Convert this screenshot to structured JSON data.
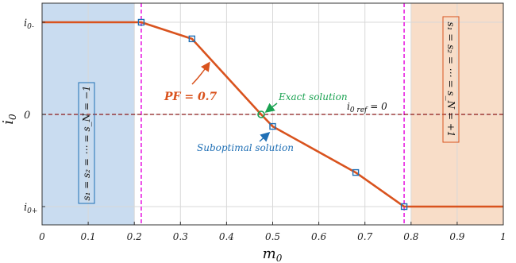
{
  "chart_data": {
    "type": "line",
    "title": "",
    "xlabel": "m",
    "xlabel_sub": "0",
    "ylabel": "i",
    "ylabel_sub": "0",
    "xlim": [
      0,
      1
    ],
    "ylim": [
      -1.2,
      1.0
    ],
    "grid": true,
    "x_ticks": [
      0,
      0.1,
      0.2,
      0.3,
      0.4,
      0.5,
      0.6,
      0.7,
      0.8,
      0.9,
      1
    ],
    "x_tick_labels": [
      "0",
      "0.1",
      "0.2",
      "0.3",
      "0.4",
      "0.5",
      "0.6",
      "0.7",
      "0.8",
      "0.9",
      "1"
    ],
    "y_ticks": [
      {
        "value": 1,
        "main": "i",
        "sub": "0-"
      },
      {
        "value": 0,
        "main": "0",
        "sub": ""
      },
      {
        "value": -1,
        "main": "i",
        "sub": "0+"
      }
    ],
    "series": [
      {
        "color": "#d9531e",
        "x": [
          0,
          0.215,
          0.325,
          0.475,
          0.5,
          0.68,
          0.785,
          1
        ],
        "y": [
          1,
          1,
          0.82,
          0,
          -0.13,
          -0.63,
          -1,
          -1
        ]
      }
    ],
    "markers_square": {
      "color": "#1f6fb5",
      "x": [
        0.215,
        0.325,
        0.5,
        0.68,
        0.785
      ],
      "y": [
        1,
        0.82,
        -0.13,
        -0.63,
        -1
      ]
    },
    "marker_exact": {
      "x": 0.475,
      "y": 0,
      "color": "#1aa251"
    },
    "vlines": [
      {
        "x": 0.215,
        "color": "#e81ee0"
      },
      {
        "x": 0.785,
        "color": "#e81ee0"
      }
    ],
    "hline": {
      "y": 0,
      "color": "#8b1a1a"
    },
    "regions": [
      {
        "x0": 0,
        "x1": 0.2,
        "color": "#c9dcf0",
        "label": "s₁ = s₂ = ⋯ = s_N = −1",
        "border": "#1f6fb5"
      },
      {
        "x0": 0.8,
        "x1": 1,
        "color": "#f8ddc8",
        "label": "s₁ = s₂ = ⋯ = s_N = +1",
        "border": "#d9531e"
      }
    ],
    "annotations": {
      "pf": "PF = 0.7",
      "exact": "Exact solution",
      "suboptimal": "Suboptimal solution",
      "i0ref_main": "i",
      "i0ref_sub": "0 ref",
      "i0ref_eq": " = 0"
    },
    "annotation_colors": {
      "exact": "#1aa251",
      "suboptimal": "#1f6fb5",
      "pf_arrow": "#d9531e"
    }
  }
}
